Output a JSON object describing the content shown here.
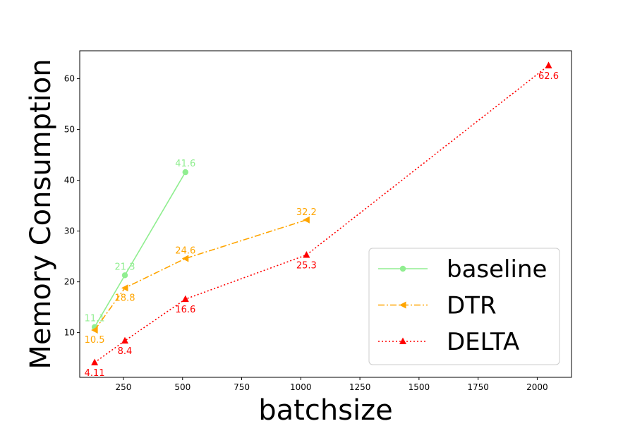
{
  "chart_data": {
    "type": "line",
    "title": "",
    "xlabel": "batchsize",
    "ylabel": "Memory Consumption",
    "xlim": [
      65,
      2145
    ],
    "ylim": [
      1.2,
      65.5
    ],
    "xticks": [
      250,
      500,
      750,
      1000,
      1250,
      1500,
      1750,
      2000
    ],
    "yticks": [
      10,
      20,
      30,
      40,
      50,
      60
    ],
    "grid": false,
    "legend_position": "bottom-right",
    "series": [
      {
        "name": "baseline",
        "color": "#90ee90",
        "line_style": "solid",
        "marker": "circle",
        "x": [
          128,
          256,
          512
        ],
        "y": [
          11.1,
          21.3,
          41.6
        ],
        "labels": [
          "11.1",
          "21.3",
          "41.6"
        ]
      },
      {
        "name": "DTR",
        "color": "#ffa500",
        "line_style": "dashdot",
        "marker": "triangle-left",
        "x": [
          128,
          256,
          512,
          1024
        ],
        "y": [
          10.5,
          18.8,
          24.6,
          32.2
        ],
        "labels": [
          "10.5",
          "18.8",
          "24.6",
          "32.2"
        ]
      },
      {
        "name": "DELTA",
        "color": "#ff0000",
        "line_style": "dotted",
        "marker": "triangle-up",
        "x": [
          128,
          256,
          512,
          1024,
          2048
        ],
        "y": [
          4.11,
          8.4,
          16.6,
          25.3,
          62.6
        ],
        "labels": [
          "4.11",
          "8.4",
          "16.6",
          "25.3",
          "62.6"
        ]
      }
    ]
  }
}
